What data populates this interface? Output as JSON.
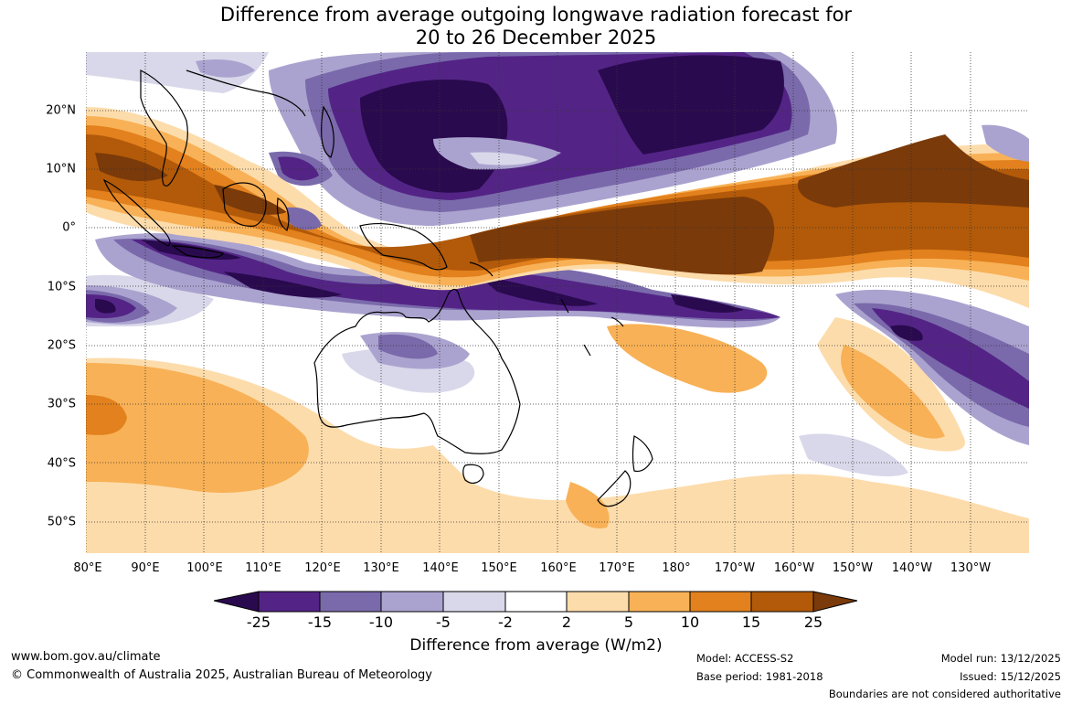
{
  "title_line1": "Difference from average outgoing longwave radiation forecast for",
  "title_line2": "20 to 26 December 2025",
  "map": {
    "latitude_labels": [
      "20°N",
      "10°N",
      "0°",
      "10°S",
      "20°S",
      "30°S",
      "40°S",
      "50°S"
    ],
    "longitude_labels": [
      "80°E",
      "90°E",
      "100°E",
      "110°E",
      "120°E",
      "130°E",
      "140°E",
      "150°E",
      "160°E",
      "170°E",
      "180°",
      "170°W",
      "160°W",
      "150°W",
      "140°W",
      "130°W"
    ]
  },
  "legend": {
    "tick_labels": [
      "-25",
      "-15",
      "-10",
      "-5",
      "-2",
      "2",
      "5",
      "10",
      "15",
      "25"
    ],
    "colors": [
      "#2a0a4e",
      "#532486",
      "#7a6aab",
      "#aba3cf",
      "#d9d8ea",
      "#ffffff",
      "#fddcab",
      "#f8b156",
      "#e2811d",
      "#b25a09",
      "#7a3a0a"
    ],
    "units_label": "Difference from average (W/m2)"
  },
  "footer": {
    "website": "www.bom.gov.au/climate",
    "copyright": "© Commonwealth of Australia 2025, Australian Bureau of Meteorology",
    "model": "Model: ACCESS-S2",
    "base_period": "Base period: 1981-2018",
    "model_run": "Model run: 13/12/2025",
    "issued": "Issued: 15/12/2025",
    "disclaimer": "Boundaries are not considered authoritative"
  }
}
